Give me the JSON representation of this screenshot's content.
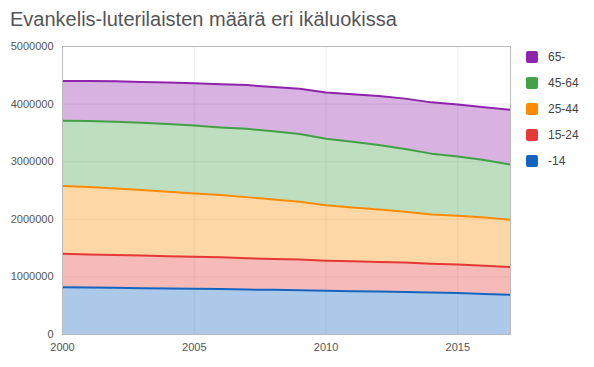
{
  "chart_data": {
    "type": "area",
    "title": "Evankelis-luterilaisten määrä eri ikäluokissa",
    "stacked": true,
    "grid": true,
    "legend": "right",
    "x": [
      2000,
      2001,
      2002,
      2003,
      2004,
      2005,
      2006,
      2007,
      2008,
      2009,
      2010,
      2011,
      2012,
      2013,
      2014,
      2015,
      2016,
      2017
    ],
    "xlim": [
      2000,
      2017
    ],
    "xticks": [
      2000,
      2005,
      2010,
      2015
    ],
    "ylim": [
      0,
      5000000
    ],
    "yticks": [
      0,
      1000000,
      2000000,
      3000000,
      4000000,
      5000000
    ],
    "series": [
      {
        "name": "-14",
        "color": "#1565c0",
        "values": [
          820000,
          815000,
          810000,
          805000,
          800000,
          795000,
          790000,
          780000,
          775000,
          770000,
          760000,
          750000,
          745000,
          740000,
          730000,
          720000,
          705000,
          690000
        ]
      },
      {
        "name": "15-24",
        "color": "#e53935",
        "values": [
          580000,
          575000,
          570000,
          565000,
          560000,
          555000,
          550000,
          545000,
          535000,
          530000,
          520000,
          520000,
          515000,
          510000,
          500000,
          495000,
          490000,
          480000
        ]
      },
      {
        "name": "25-44",
        "color": "#fb8c00",
        "values": [
          1180000,
          1170000,
          1155000,
          1140000,
          1120000,
          1100000,
          1080000,
          1060000,
          1035000,
          1005000,
          965000,
          935000,
          910000,
          880000,
          855000,
          845000,
          835000,
          820000
        ]
      },
      {
        "name": "45-64",
        "color": "#43a047",
        "values": [
          1130000,
          1145000,
          1160000,
          1165000,
          1175000,
          1180000,
          1175000,
          1185000,
          1185000,
          1175000,
          1155000,
          1140000,
          1120000,
          1090000,
          1055000,
          1030000,
          1000000,
          960000
        ]
      },
      {
        "name": "65-",
        "color": "#8e24aa",
        "values": [
          690000,
          695000,
          700000,
          710000,
          720000,
          730000,
          750000,
          760000,
          765000,
          785000,
          800000,
          825000,
          850000,
          875000,
          890000,
          905000,
          915000,
          950000
        ]
      }
    ]
  }
}
